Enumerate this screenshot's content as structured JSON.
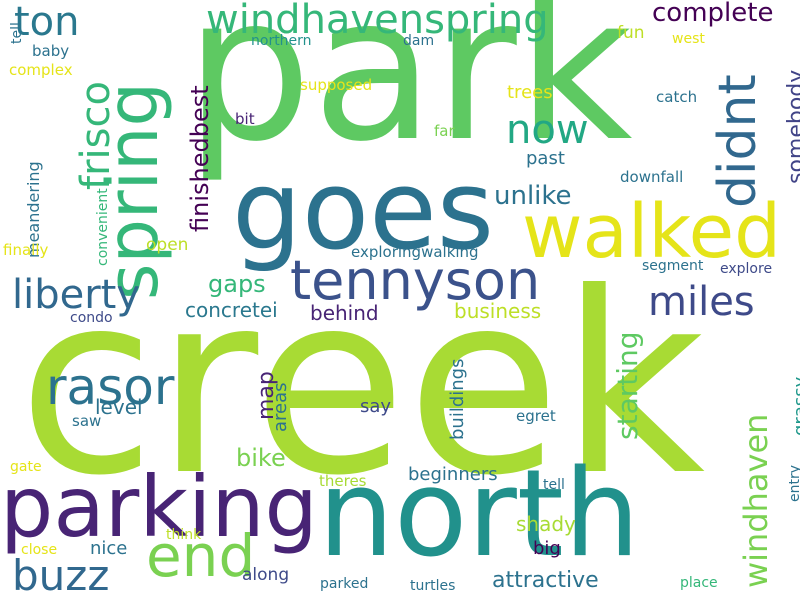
{
  "words": [
    {
      "text": "creek",
      "color": "#a8db34"
    },
    {
      "text": "park",
      "color": "#5ec962"
    },
    {
      "text": "north",
      "color": "#21918c"
    },
    {
      "text": "goes",
      "color": "#2c728e"
    },
    {
      "text": "walked",
      "color": "#e5e419"
    },
    {
      "text": "parking",
      "color": "#482475"
    },
    {
      "text": "spring",
      "color": "#35b779"
    },
    {
      "text": "tennyson",
      "color": "#3b528b"
    },
    {
      "text": "windhavenspring",
      "color": "#35b779"
    },
    {
      "text": "end",
      "color": "#7ad151"
    },
    {
      "text": "didnt",
      "color": "#31688e"
    },
    {
      "text": "rasor",
      "color": "#2c728e"
    },
    {
      "text": "frisco",
      "color": "#35b779"
    },
    {
      "text": "liberty",
      "color": "#31688e"
    },
    {
      "text": "buzz",
      "color": "#31688e"
    },
    {
      "text": "now",
      "color": "#22a884"
    },
    {
      "text": "ton",
      "color": "#2a788e"
    },
    {
      "text": "miles",
      "color": "#3e4a89"
    },
    {
      "text": "windhaven",
      "color": "#7ad151"
    },
    {
      "text": "complete",
      "color": "#440154"
    },
    {
      "text": "finishedbest",
      "color": "#440154"
    },
    {
      "text": "unlike",
      "color": "#2c728e"
    },
    {
      "text": "somebody",
      "color": "#414487"
    },
    {
      "text": "starting",
      "color": "#5ec962"
    },
    {
      "text": "gaps",
      "color": "#35b779"
    },
    {
      "text": "bike",
      "color": "#7ad151"
    },
    {
      "text": "map",
      "color": "#482475"
    },
    {
      "text": "concretei",
      "color": "#2a788e"
    },
    {
      "text": "attractive",
      "color": "#2c728e"
    },
    {
      "text": "grassy",
      "color": "#1f988b"
    },
    {
      "text": "areas",
      "color": "#2c728e"
    },
    {
      "text": "buildings",
      "color": "#2c728e"
    },
    {
      "text": "beginners",
      "color": "#2c728e"
    },
    {
      "text": "business",
      "color": "#bddf26"
    },
    {
      "text": "behind",
      "color": "#482475"
    },
    {
      "text": "shady",
      "color": "#a8db34"
    },
    {
      "text": "level",
      "color": "#2c728e"
    },
    {
      "text": "meandering",
      "color": "#2c728e"
    },
    {
      "text": "nice",
      "color": "#2c728e"
    },
    {
      "text": "big",
      "color": "#440154"
    },
    {
      "text": "along",
      "color": "#3e4a89"
    },
    {
      "text": "say",
      "color": "#3e4a89"
    },
    {
      "text": "past",
      "color": "#2c728e"
    },
    {
      "text": "trees",
      "color": "#e5e419"
    },
    {
      "text": "open",
      "color": "#bddf26"
    },
    {
      "text": "fun",
      "color": "#bddf26"
    },
    {
      "text": "exploringwalking",
      "color": "#2c728e"
    },
    {
      "text": "downfall",
      "color": "#2c728e"
    },
    {
      "text": "segment",
      "color": "#2c728e"
    },
    {
      "text": "explore",
      "color": "#3e4a89"
    },
    {
      "text": "northern",
      "color": "#21918c"
    },
    {
      "text": "dam",
      "color": "#2c728e"
    },
    {
      "text": "west",
      "color": "#e5e419"
    },
    {
      "text": "supposed",
      "color": "#e5e419"
    },
    {
      "text": "bit",
      "color": "#482475"
    },
    {
      "text": "far",
      "color": "#7ad151"
    },
    {
      "text": "catch",
      "color": "#2c728e"
    },
    {
      "text": "tell",
      "color": "#2c728e"
    },
    {
      "text": "theres",
      "color": "#a8db34"
    },
    {
      "text": "egret",
      "color": "#2c728e"
    },
    {
      "text": "saw",
      "color": "#2c728e"
    },
    {
      "text": "baby",
      "color": "#2c728e"
    },
    {
      "text": "complex",
      "color": "#e5e419"
    },
    {
      "text": "finally",
      "color": "#e5e419"
    },
    {
      "text": "convenient",
      "color": "#35b779"
    },
    {
      "text": "condo",
      "color": "#3e4a89"
    },
    {
      "text": "gate",
      "color": "#e5e419"
    },
    {
      "text": "close",
      "color": "#e5e419"
    },
    {
      "text": "think",
      "color": "#bddf26"
    },
    {
      "text": "parked",
      "color": "#2c728e"
    },
    {
      "text": "turtles",
      "color": "#2c728e"
    },
    {
      "text": "place",
      "color": "#35b779"
    },
    {
      "text": "entry",
      "color": "#2c728e"
    },
    {
      "text": "tell",
      "color": "#2c728e"
    }
  ]
}
